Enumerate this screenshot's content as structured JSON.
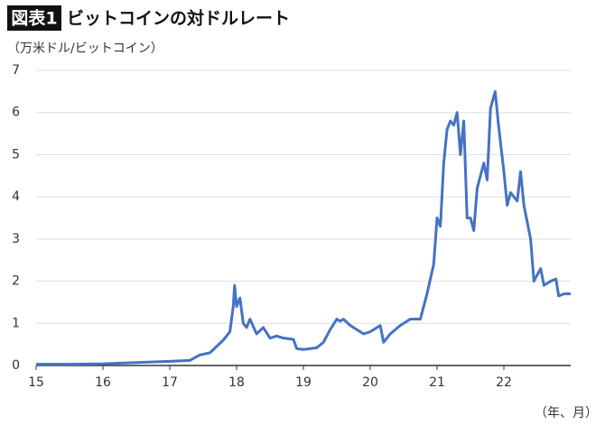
{
  "chart_data": {
    "type": "line",
    "badge": "図表1",
    "title": "ビットコインの対ドルレート",
    "y_label": "（万米ドル/ビットコイン）",
    "x_label": "（年、月）",
    "xlim": [
      2015,
      2023
    ],
    "xticks": [
      {
        "value": 2015,
        "label": "15"
      },
      {
        "value": 2016,
        "label": "16"
      },
      {
        "value": 2017,
        "label": "17"
      },
      {
        "value": 2018,
        "label": "18"
      },
      {
        "value": 2019,
        "label": "19"
      },
      {
        "value": 2020,
        "label": "20"
      },
      {
        "value": 2021,
        "label": "21"
      },
      {
        "value": 2022,
        "label": "22"
      }
    ],
    "ylim": [
      0,
      7
    ],
    "yticks": [
      0,
      1,
      2,
      3,
      4,
      5,
      6,
      7
    ],
    "grid": true,
    "x": [
      2015.0,
      2015.5,
      2016.0,
      2016.5,
      2017.0,
      2017.3,
      2017.45,
      2017.6,
      2017.7,
      2017.8,
      2017.9,
      2017.95,
      2017.97,
      2018.0,
      2018.05,
      2018.1,
      2018.15,
      2018.2,
      2018.3,
      2018.4,
      2018.5,
      2018.6,
      2018.7,
      2018.85,
      2018.9,
      2019.0,
      2019.2,
      2019.3,
      2019.4,
      2019.5,
      2019.55,
      2019.6,
      2019.7,
      2019.8,
      2019.9,
      2020.0,
      2020.15,
      2020.2,
      2020.3,
      2020.45,
      2020.6,
      2020.75,
      2020.85,
      2020.95,
      2021.0,
      2021.05,
      2021.1,
      2021.15,
      2021.2,
      2021.25,
      2021.3,
      2021.35,
      2021.4,
      2021.45,
      2021.5,
      2021.55,
      2021.6,
      2021.7,
      2021.75,
      2021.8,
      2021.87,
      2021.92,
      2022.0,
      2022.05,
      2022.1,
      2022.2,
      2022.25,
      2022.3,
      2022.4,
      2022.45,
      2022.55,
      2022.6,
      2022.7,
      2022.78,
      2022.82,
      2022.9,
      2023.0
    ],
    "series": [
      {
        "name": "ビットコイン",
        "color": "#4472c4",
        "values": [
          0.03,
          0.03,
          0.04,
          0.07,
          0.1,
          0.12,
          0.25,
          0.3,
          0.45,
          0.6,
          0.8,
          1.4,
          1.9,
          1.4,
          1.6,
          1.0,
          0.9,
          1.1,
          0.75,
          0.9,
          0.65,
          0.7,
          0.65,
          0.62,
          0.4,
          0.38,
          0.42,
          0.55,
          0.85,
          1.1,
          1.05,
          1.1,
          0.95,
          0.85,
          0.75,
          0.8,
          0.95,
          0.55,
          0.75,
          0.95,
          1.1,
          1.1,
          1.7,
          2.4,
          3.5,
          3.3,
          4.8,
          5.6,
          5.8,
          5.7,
          6.0,
          5.0,
          5.8,
          3.5,
          3.5,
          3.2,
          4.2,
          4.8,
          4.4,
          6.1,
          6.5,
          5.7,
          4.6,
          3.8,
          4.1,
          3.9,
          4.6,
          3.8,
          3.0,
          2.0,
          2.3,
          1.9,
          2.0,
          2.05,
          1.65,
          1.7,
          1.7
        ]
      }
    ]
  }
}
